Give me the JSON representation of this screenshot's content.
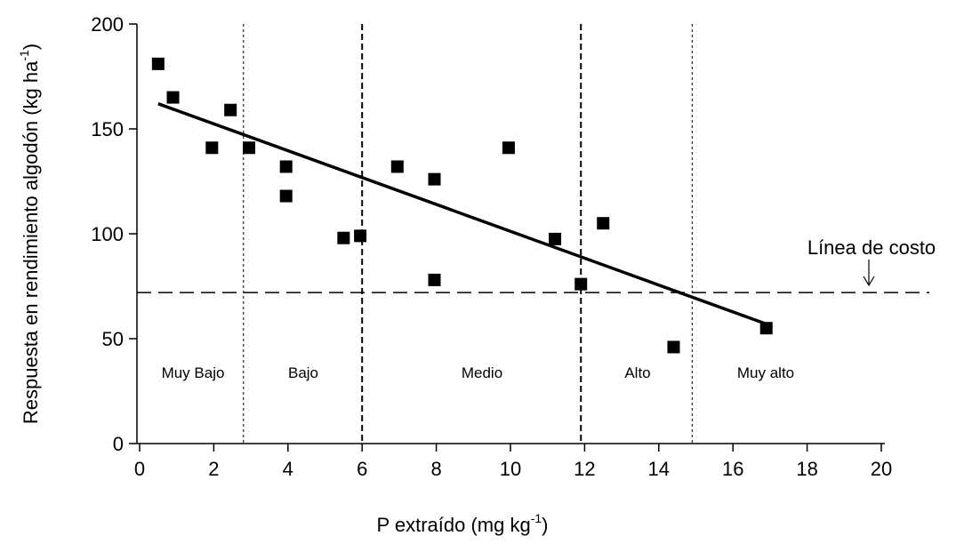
{
  "chart_data": {
    "type": "scatter",
    "x_label": {
      "text": "P extraído (mg kg",
      "sup": "-1",
      "close": ")"
    },
    "y_label": {
      "text": "Respuesta en rendimiento algodón (kg ha",
      "sup": "-1",
      "close": ")"
    },
    "x": [
      0.5,
      0.9,
      1.95,
      2.45,
      2.95,
      3.95,
      3.95,
      5.5,
      5.95,
      6.95,
      7.95,
      7.95,
      9.95,
      11.2,
      11.9,
      12.5,
      14.4,
      16.9
    ],
    "values": [
      181,
      165,
      141,
      159,
      141,
      132,
      118,
      98,
      99,
      132,
      126,
      78,
      141,
      97.5,
      76,
      105,
      46,
      55
    ],
    "color": "#000000",
    "trendline": {
      "x": [
        0.5,
        16.9
      ],
      "values": [
        162,
        57
      ]
    },
    "cost_line": {
      "value": 72,
      "label": "Línea de costo"
    },
    "vlines": [
      {
        "value": 2.8,
        "style": "dotted"
      },
      {
        "value": 6,
        "style": "dashed"
      },
      {
        "value": 11.9,
        "style": "dashed"
      },
      {
        "value": 14.9,
        "style": "dotted"
      }
    ],
    "zones": [
      "Muy Bajo",
      "Bajo",
      "Medio",
      "Alto",
      "Muy alto"
    ],
    "xlim": [
      0,
      20
    ],
    "xticks": [
      0,
      2,
      4,
      6,
      8,
      10,
      12,
      14,
      16,
      18,
      20
    ],
    "ylim": [
      0,
      200
    ],
    "yticks": [
      0,
      50,
      100,
      150,
      200
    ],
    "grid": false
  }
}
